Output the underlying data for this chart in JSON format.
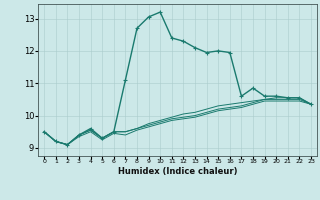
{
  "xlabel": "Humidex (Indice chaleur)",
  "ylabel": "",
  "xlim": [
    -0.5,
    23.5
  ],
  "ylim": [
    8.75,
    13.45
  ],
  "xticks": [
    0,
    1,
    2,
    3,
    4,
    5,
    6,
    7,
    8,
    9,
    10,
    11,
    12,
    13,
    14,
    15,
    16,
    17,
    18,
    19,
    20,
    21,
    22,
    23
  ],
  "yticks": [
    9,
    10,
    11,
    12,
    13
  ],
  "bg_color": "#cce8e8",
  "line_color": "#1a7a6e",
  "grid_color": "#aacccc",
  "series": [
    [
      9.5,
      9.2,
      9.1,
      9.4,
      9.6,
      9.3,
      9.5,
      11.1,
      12.7,
      13.05,
      13.2,
      12.4,
      12.3,
      12.1,
      11.95,
      12.0,
      11.95,
      10.6,
      10.85,
      10.6,
      10.6,
      10.55,
      10.55,
      10.35
    ],
    [
      9.5,
      9.2,
      9.1,
      9.4,
      9.55,
      9.3,
      9.5,
      9.5,
      9.6,
      9.75,
      9.85,
      9.95,
      10.05,
      10.1,
      10.2,
      10.3,
      10.35,
      10.4,
      10.45,
      10.5,
      10.55,
      10.55,
      10.55,
      10.35
    ],
    [
      9.5,
      9.2,
      9.1,
      9.4,
      9.55,
      9.3,
      9.5,
      9.5,
      9.6,
      9.7,
      9.8,
      9.9,
      9.95,
      10.0,
      10.1,
      10.2,
      10.25,
      10.3,
      10.4,
      10.5,
      10.5,
      10.5,
      10.5,
      10.35
    ],
    [
      9.5,
      9.2,
      9.1,
      9.35,
      9.5,
      9.25,
      9.45,
      9.4,
      9.55,
      9.65,
      9.75,
      9.85,
      9.9,
      9.95,
      10.05,
      10.15,
      10.2,
      10.25,
      10.35,
      10.45,
      10.45,
      10.45,
      10.45,
      10.35
    ]
  ]
}
